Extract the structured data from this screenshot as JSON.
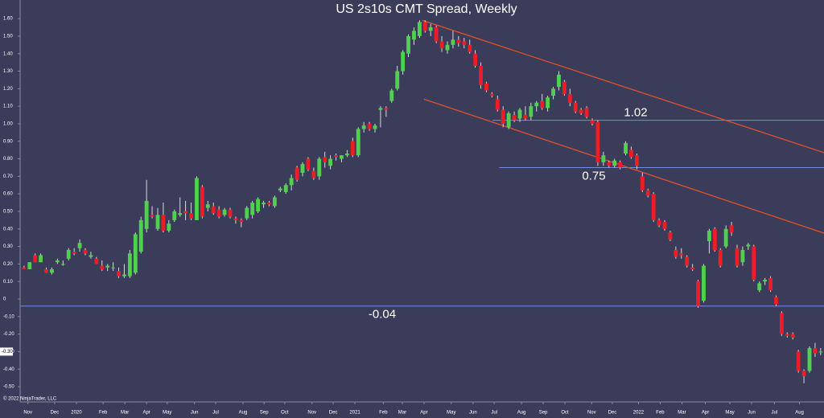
{
  "chart_data": {
    "type": "candlestick",
    "title": "US 2s10s CMT Spread, Weekly",
    "copyright": "© 2022 NinjaTrader, LLC",
    "up_color": "#4fd14f",
    "down_color": "#ee1c25",
    "wick_color": "#d8d8d8",
    "x": [
      0,
      1,
      2,
      3,
      4,
      5,
      6,
      7,
      8,
      9,
      10,
      11,
      12,
      13,
      14,
      15,
      16,
      17,
      18,
      19,
      20,
      21,
      22,
      23,
      24,
      25,
      26,
      27,
      28,
      29,
      30,
      31,
      32,
      33,
      34,
      35,
      36,
      37,
      38,
      39,
      40,
      41,
      42,
      43,
      44,
      45,
      46,
      47,
      48,
      49,
      50,
      51,
      52,
      53,
      54,
      55,
      56,
      57,
      58,
      59,
      60,
      61,
      62,
      63,
      64,
      65,
      66,
      67,
      68,
      69,
      70,
      71,
      72,
      73,
      74,
      75,
      76,
      77,
      78,
      79,
      80,
      81,
      82,
      83,
      84,
      85,
      86,
      87,
      88,
      89,
      90,
      91,
      92,
      93,
      94,
      95,
      96,
      97,
      98,
      99,
      100,
      101,
      102,
      103,
      104,
      105,
      106,
      107,
      108,
      109,
      110,
      111,
      112,
      113,
      114,
      115,
      116,
      117,
      118,
      119,
      120,
      121,
      122,
      123,
      124,
      125,
      126,
      127,
      128,
      129,
      130,
      131,
      132,
      133,
      134,
      135,
      136,
      137,
      138,
      139,
      140,
      141,
      142,
      143
    ],
    "open": [
      0.18,
      0.17,
      0.25,
      0.21,
      0.17,
      0.15,
      0.21,
      0.2,
      0.23,
      0.27,
      0.29,
      0.28,
      0.24,
      0.23,
      0.19,
      0.18,
      0.18,
      0.16,
      0.13,
      0.13,
      0.15,
      0.27,
      0.4,
      0.48,
      0.4,
      0.48,
      0.39,
      0.45,
      0.48,
      0.5,
      0.49,
      0.45,
      0.64,
      0.52,
      0.53,
      0.51,
      0.48,
      0.51,
      0.46,
      0.45,
      0.46,
      0.48,
      0.5,
      0.54,
      0.55,
      0.53,
      0.62,
      0.61,
      0.65,
      0.75,
      0.72,
      0.8,
      0.73,
      0.7,
      0.81,
      0.76,
      0.82,
      0.8,
      0.82,
      0.9,
      0.82,
      0.97,
      1.0,
      0.97,
      1.08,
      1.09,
      1.13,
      1.2,
      1.3,
      1.4,
      1.48,
      1.5,
      1.58,
      1.53,
      1.55,
      1.47,
      1.42,
      1.45,
      1.48,
      1.47,
      1.45,
      1.4,
      1.33,
      1.23,
      1.17,
      1.14,
      1.08,
      0.98,
      1.05,
      1.03,
      1.05,
      1.04,
      1.1,
      1.13,
      1.09,
      1.16,
      1.21,
      1.24,
      1.17,
      1.12,
      1.08,
      1.09,
      1.02,
      1.01,
      0.78,
      0.78,
      0.76,
      0.78,
      0.83,
      0.85,
      0.82,
      0.7,
      0.62,
      0.6,
      0.45,
      0.44,
      0.38,
      0.28,
      0.26,
      0.24,
      0.18,
      0.1,
      -0.01,
      0.33,
      0.4,
      0.28,
      0.3,
      0.42,
      0.29,
      0.21,
      0.3,
      0.3,
      0.05,
      0.1,
      0.12,
      0.01,
      -0.08,
      -0.2,
      -0.2,
      -0.3,
      -0.41,
      -0.41,
      -0.28,
      -0.3
    ],
    "high": [
      0.19,
      0.21,
      0.26,
      0.26,
      0.18,
      0.18,
      0.23,
      0.22,
      0.29,
      0.29,
      0.34,
      0.29,
      0.27,
      0.24,
      0.22,
      0.2,
      0.21,
      0.18,
      0.2,
      0.28,
      0.38,
      0.47,
      0.68,
      0.53,
      0.52,
      0.55,
      0.45,
      0.51,
      0.58,
      0.56,
      0.55,
      0.7,
      0.65,
      0.56,
      0.55,
      0.53,
      0.52,
      0.52,
      0.47,
      0.46,
      0.53,
      0.56,
      0.58,
      0.56,
      0.56,
      0.59,
      0.64,
      0.66,
      0.71,
      0.76,
      0.78,
      0.81,
      0.75,
      0.81,
      0.84,
      0.82,
      0.83,
      0.82,
      0.85,
      0.92,
      0.98,
      1.01,
      1.01,
      1.0,
      1.1,
      1.1,
      1.2,
      1.33,
      1.42,
      1.51,
      1.55,
      1.59,
      1.59,
      1.57,
      1.56,
      1.5,
      1.47,
      1.53,
      1.5,
      1.49,
      1.48,
      1.42,
      1.35,
      1.24,
      1.18,
      1.16,
      1.1,
      1.07,
      1.07,
      1.09,
      1.1,
      1.12,
      1.13,
      1.17,
      1.16,
      1.21,
      1.3,
      1.25,
      1.2,
      1.13,
      1.09,
      1.1,
      1.03,
      1.02,
      0.84,
      0.79,
      0.8,
      0.79,
      0.9,
      0.87,
      0.83,
      0.72,
      0.63,
      0.61,
      0.46,
      0.45,
      0.39,
      0.3,
      0.29,
      0.25,
      0.2,
      0.11,
      0.2,
      0.4,
      0.41,
      0.29,
      0.42,
      0.44,
      0.31,
      0.3,
      0.32,
      0.31,
      0.1,
      0.12,
      0.13,
      0.02,
      -0.07,
      -0.19,
      -0.19,
      -0.29,
      -0.4,
      -0.27,
      -0.25,
      -0.28
    ],
    "low": [
      0.17,
      0.17,
      0.21,
      0.21,
      0.15,
      0.14,
      0.2,
      0.19,
      0.22,
      0.25,
      0.27,
      0.25,
      0.23,
      0.2,
      0.16,
      0.16,
      0.16,
      0.12,
      0.12,
      0.12,
      0.14,
      0.26,
      0.38,
      0.46,
      0.39,
      0.38,
      0.38,
      0.44,
      0.47,
      0.45,
      0.45,
      0.45,
      0.46,
      0.5,
      0.48,
      0.46,
      0.47,
      0.46,
      0.43,
      0.41,
      0.45,
      0.46,
      0.49,
      0.52,
      0.53,
      0.52,
      0.61,
      0.6,
      0.62,
      0.67,
      0.7,
      0.73,
      0.68,
      0.68,
      0.75,
      0.74,
      0.79,
      0.78,
      0.81,
      0.81,
      0.81,
      0.95,
      0.96,
      0.95,
      0.98,
      1.04,
      1.12,
      1.19,
      1.28,
      1.38,
      1.45,
      1.49,
      1.52,
      1.5,
      1.46,
      1.41,
      1.4,
      1.43,
      1.44,
      1.43,
      1.4,
      1.32,
      1.2,
      1.18,
      1.15,
      1.07,
      0.98,
      0.97,
      1.01,
      1.01,
      1.02,
      1.02,
      1.07,
      1.08,
      1.07,
      1.14,
      1.19,
      1.16,
      1.1,
      1.06,
      1.05,
      1.03,
      0.99,
      0.76,
      0.76,
      0.75,
      0.75,
      0.74,
      0.82,
      0.8,
      0.74,
      0.61,
      0.58,
      0.44,
      0.41,
      0.39,
      0.33,
      0.23,
      0.23,
      0.18,
      0.16,
      -0.05,
      -0.02,
      0.26,
      0.27,
      0.18,
      0.29,
      0.36,
      0.18,
      0.19,
      0.28,
      0.1,
      0.04,
      0.08,
      0.04,
      -0.04,
      -0.21,
      -0.22,
      -0.23,
      -0.42,
      -0.48,
      -0.42,
      -0.33,
      -0.32
    ],
    "close": [
      0.17,
      0.21,
      0.21,
      0.25,
      0.15,
      0.17,
      0.22,
      0.2,
      0.28,
      0.26,
      0.32,
      0.26,
      0.25,
      0.2,
      0.17,
      0.19,
      0.18,
      0.13,
      0.14,
      0.26,
      0.37,
      0.45,
      0.56,
      0.47,
      0.48,
      0.39,
      0.43,
      0.5,
      0.49,
      0.49,
      0.46,
      0.69,
      0.47,
      0.54,
      0.49,
      0.47,
      0.51,
      0.47,
      0.45,
      0.44,
      0.52,
      0.55,
      0.57,
      0.55,
      0.54,
      0.58,
      0.63,
      0.65,
      0.69,
      0.68,
      0.77,
      0.74,
      0.69,
      0.8,
      0.78,
      0.8,
      0.81,
      0.82,
      0.83,
      0.82,
      0.97,
      0.99,
      0.97,
      0.99,
      1.09,
      1.08,
      1.19,
      1.3,
      1.41,
      1.5,
      1.53,
      1.58,
      1.53,
      1.55,
      1.47,
      1.43,
      1.45,
      1.48,
      1.46,
      1.45,
      1.41,
      1.33,
      1.22,
      1.19,
      1.16,
      1.08,
      1.0,
      1.06,
      1.02,
      1.08,
      1.03,
      1.1,
      1.12,
      1.09,
      1.15,
      1.2,
      1.28,
      1.17,
      1.12,
      1.07,
      1.06,
      1.04,
      1.0,
      0.78,
      0.82,
      0.76,
      0.79,
      0.75,
      0.89,
      0.81,
      0.76,
      0.62,
      0.59,
      0.45,
      0.42,
      0.4,
      0.34,
      0.24,
      0.25,
      0.19,
      0.17,
      -0.04,
      0.19,
      0.39,
      0.28,
      0.19,
      0.4,
      0.38,
      0.19,
      0.28,
      0.31,
      0.11,
      0.09,
      0.11,
      0.05,
      -0.03,
      -0.2,
      -0.21,
      -0.22,
      -0.41,
      -0.44,
      -0.28,
      -0.31,
      -0.3
    ],
    "xlim": [
      -0.7,
      143.6
    ],
    "xticks": [
      {
        "value": 0.7,
        "label": "Nov"
      },
      {
        "value": 5.5,
        "label": "Dec"
      },
      {
        "value": 9.4,
        "label": "2020"
      },
      {
        "value": 14.2,
        "label": "Feb"
      },
      {
        "value": 18.1,
        "label": "Mar"
      },
      {
        "value": 22.0,
        "label": "Apr"
      },
      {
        "value": 25.7,
        "label": "May"
      },
      {
        "value": 30.6,
        "label": "Jun"
      },
      {
        "value": 34.4,
        "label": "Jul"
      },
      {
        "value": 39.3,
        "label": "Aug"
      },
      {
        "value": 43.1,
        "label": "Sep"
      },
      {
        "value": 46.8,
        "label": "Oct"
      },
      {
        "value": 51.7,
        "label": "Nov"
      },
      {
        "value": 55.5,
        "label": "Dec"
      },
      {
        "value": 59.4,
        "label": "2021"
      },
      {
        "value": 64.5,
        "label": "Feb"
      },
      {
        "value": 67.9,
        "label": "Mar"
      },
      {
        "value": 71.8,
        "label": "Apr"
      },
      {
        "value": 76.7,
        "label": "May"
      },
      {
        "value": 80.6,
        "label": "Jun"
      },
      {
        "value": 84.4,
        "label": "Jul"
      },
      {
        "value": 89.3,
        "label": "Aug"
      },
      {
        "value": 93.2,
        "label": "Sep"
      },
      {
        "value": 97.1,
        "label": "Oct"
      },
      {
        "value": 101.9,
        "label": "Nov"
      },
      {
        "value": 105.6,
        "label": "Dec"
      },
      {
        "value": 110.3,
        "label": "2022"
      },
      {
        "value": 114.2,
        "label": "Feb"
      },
      {
        "value": 118.1,
        "label": "Mar"
      },
      {
        "value": 122.3,
        "label": "Apr"
      },
      {
        "value": 126.7,
        "label": "May"
      },
      {
        "value": 130.6,
        "label": "Jun"
      },
      {
        "value": 134.7,
        "label": "Jul"
      },
      {
        "value": 139.2,
        "label": "Aug"
      }
    ],
    "ylim": [
      -0.587,
      1.706
    ],
    "yticks": [
      {
        "value": 1.6,
        "label": "1.60"
      },
      {
        "value": 1.5,
        "label": "1.50"
      },
      {
        "value": 1.4,
        "label": "1.40"
      },
      {
        "value": 1.3,
        "label": "1.30"
      },
      {
        "value": 1.2,
        "label": "1.20"
      },
      {
        "value": 1.1,
        "label": "1.10"
      },
      {
        "value": 1.0,
        "label": "1.00"
      },
      {
        "value": 0.9,
        "label": "0.90"
      },
      {
        "value": 0.8,
        "label": "0.80"
      },
      {
        "value": 0.7,
        "label": "0.70"
      },
      {
        "value": 0.6,
        "label": "0.60"
      },
      {
        "value": 0.5,
        "label": "0.50"
      },
      {
        "value": 0.4,
        "label": "0.40"
      },
      {
        "value": 0.3,
        "label": "0.30"
      },
      {
        "value": 0.2,
        "label": "0.20"
      },
      {
        "value": 0.1,
        "label": "0.10"
      },
      0,
      {
        "value": -0.1,
        "label": "-0.10"
      },
      {
        "value": -0.2,
        "label": "-0.20"
      },
      {
        "value": -0.3,
        "label": "-0.30"
      },
      {
        "value": -0.4,
        "label": "-0.40"
      },
      {
        "value": -0.5,
        "label": "-0.50"
      }
    ],
    "last_price": {
      "value": -0.3,
      "label": "-0.30"
    },
    "levels": [
      {
        "value": 1.02,
        "label": "1.02",
        "from": 84.1,
        "color": "#6f8fe6"
      },
      {
        "value": 0.75,
        "label": "0.75",
        "from": 85.3,
        "color": "#6f8fe6"
      },
      {
        "value": -0.04,
        "label": "-0.04",
        "from": -0.7,
        "color": "#6f8fe6"
      }
    ],
    "trendlines": [
      {
        "x": [
          71.5,
          143.6
        ],
        "y": [
          1.59,
          0.835
        ],
        "color": "#e0522a"
      },
      {
        "x": [
          71.8,
          143.6
        ],
        "y": [
          1.14,
          0.376
        ],
        "color": "#e0522a"
      }
    ]
  }
}
